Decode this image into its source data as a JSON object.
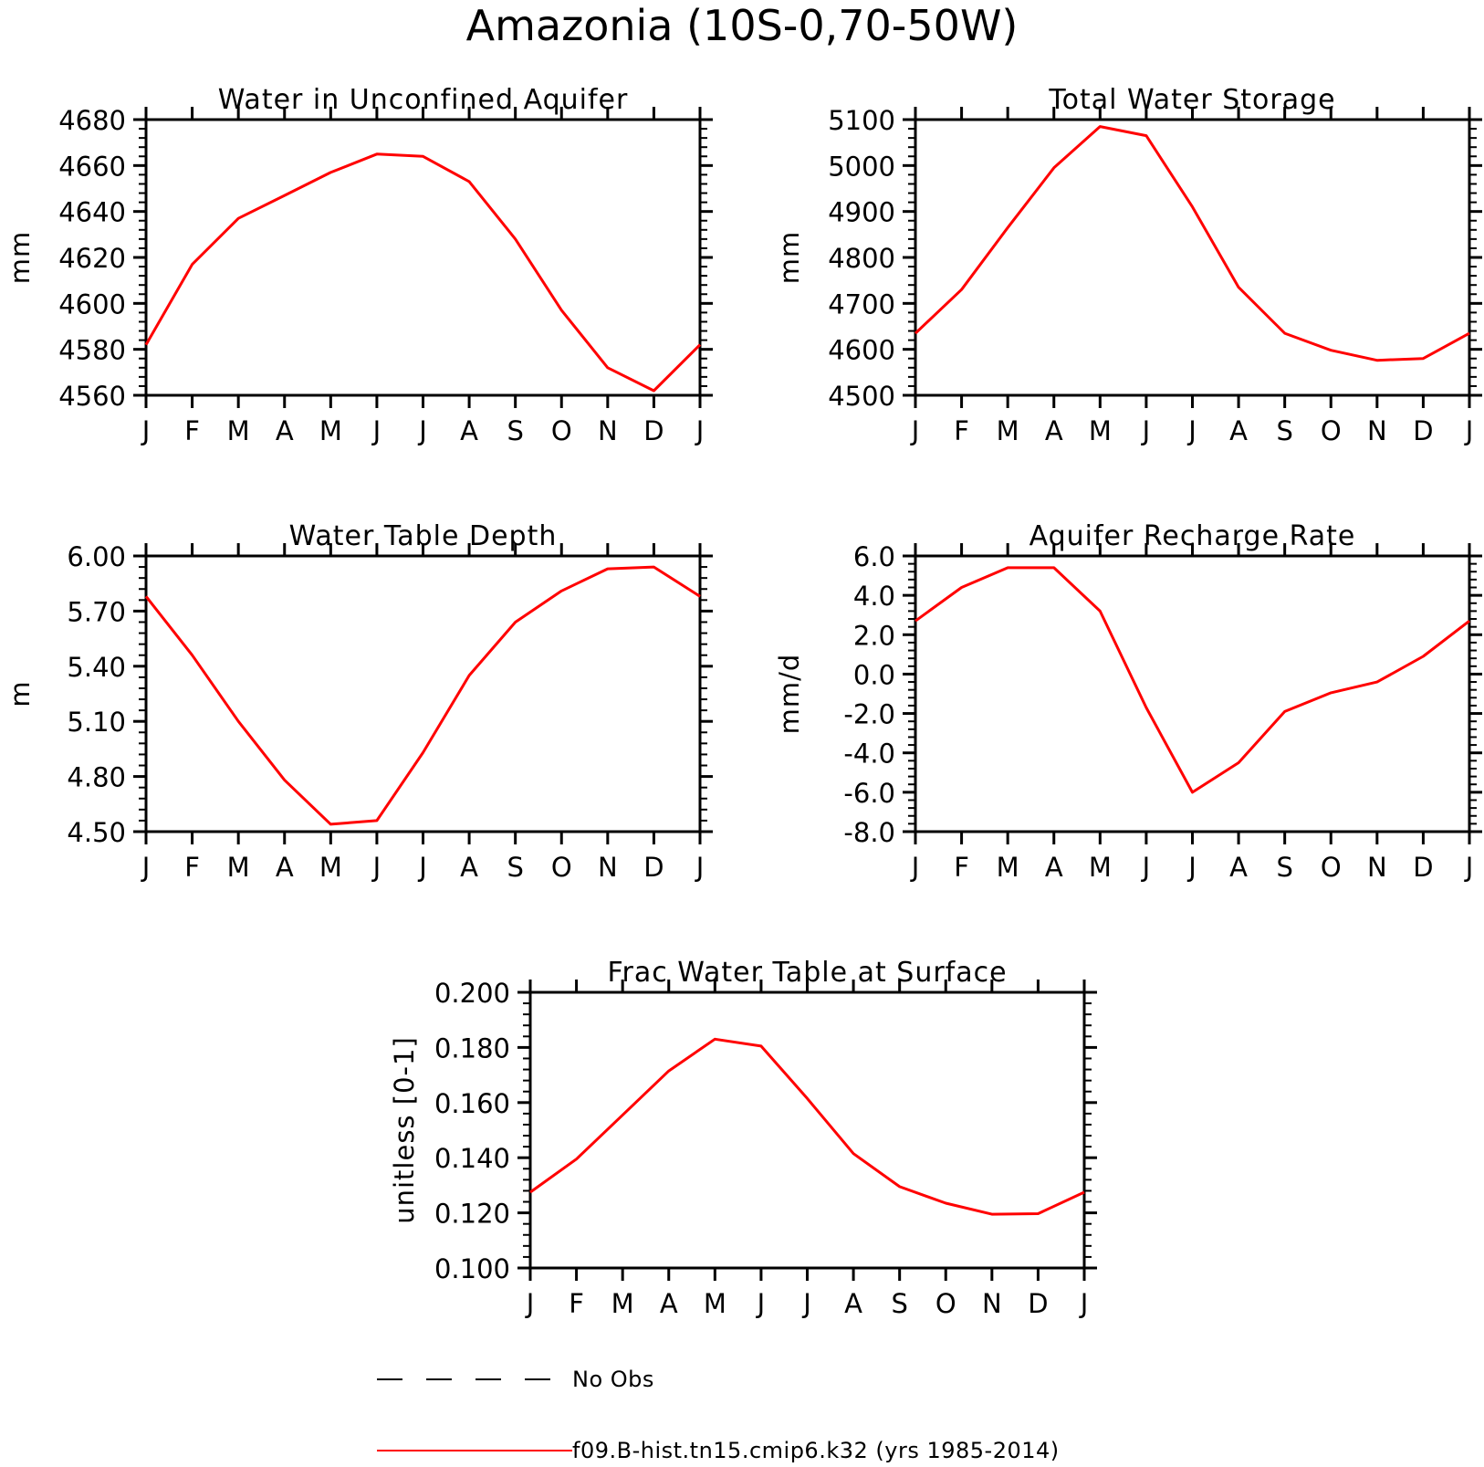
{
  "figure_title": "Amazonia (10S-0,70-50W)",
  "legend": [
    {
      "label": "No Obs",
      "style": "dashed",
      "color": "#000000"
    },
    {
      "label": "f09.B-hist.tn15.cmip6.k32 (yrs 1985-2014)",
      "style": "solid",
      "color": "#ff0000"
    }
  ],
  "chart_data": [
    {
      "type": "line",
      "title": "Water in Unconfined Aquifer",
      "xlabel": "",
      "ylabel": "mm",
      "categories": [
        "J",
        "F",
        "M",
        "A",
        "M",
        "J",
        "J",
        "A",
        "S",
        "O",
        "N",
        "D",
        "J"
      ],
      "ylim": [
        4560,
        4680
      ],
      "yticks": [
        4560,
        4580,
        4600,
        4620,
        4640,
        4660,
        4680
      ],
      "ytick_labels": [
        "4560",
        "4580",
        "4600",
        "4620",
        "4640",
        "4660",
        "4680"
      ],
      "series": [
        {
          "color": "#ff0000",
          "values": [
            4582,
            4617,
            4637,
            4647,
            4657,
            4665,
            4664,
            4653,
            4628,
            4597,
            4572,
            4562,
            4582
          ]
        }
      ]
    },
    {
      "type": "line",
      "title": "Total Water Storage",
      "xlabel": "",
      "ylabel": "mm",
      "categories": [
        "J",
        "F",
        "M",
        "A",
        "M",
        "J",
        "J",
        "A",
        "S",
        "O",
        "N",
        "D",
        "J"
      ],
      "ylim": [
        4500,
        5100
      ],
      "yticks": [
        4500,
        4600,
        4700,
        4800,
        4900,
        5000,
        5100
      ],
      "ytick_labels": [
        "4500",
        "4600",
        "4700",
        "4800",
        "4900",
        "5000",
        "5100"
      ],
      "series": [
        {
          "color": "#ff0000",
          "values": [
            4635,
            4730,
            4865,
            4995,
            5085,
            5065,
            4910,
            4735,
            4635,
            4598,
            4576,
            4580,
            4635
          ]
        }
      ]
    },
    {
      "type": "line",
      "title": "Water Table Depth",
      "xlabel": "",
      "ylabel": "m",
      "categories": [
        "J",
        "F",
        "M",
        "A",
        "M",
        "J",
        "J",
        "A",
        "S",
        "O",
        "N",
        "D",
        "J"
      ],
      "ylim": [
        4.5,
        6.0
      ],
      "yticks": [
        4.5,
        4.8,
        5.1,
        5.4,
        5.7,
        6.0
      ],
      "ytick_labels": [
        "4.50",
        "4.80",
        "5.10",
        "5.40",
        "5.70",
        "6.00"
      ],
      "series": [
        {
          "color": "#ff0000",
          "values": [
            5.78,
            5.46,
            5.1,
            4.78,
            4.54,
            4.56,
            4.93,
            5.35,
            5.64,
            5.81,
            5.93,
            5.94,
            5.78
          ]
        }
      ]
    },
    {
      "type": "line",
      "title": "Aquifer Recharge Rate",
      "xlabel": "",
      "ylabel": "mm/d",
      "categories": [
        "J",
        "F",
        "M",
        "A",
        "M",
        "J",
        "J",
        "A",
        "S",
        "O",
        "N",
        "D",
        "J"
      ],
      "ylim": [
        -8.0,
        6.0
      ],
      "yticks": [
        -8,
        -6,
        -4,
        -2,
        0,
        2,
        4,
        6
      ],
      "ytick_labels": [
        "-8.0",
        "-6.0",
        "-4.0",
        "-2.0",
        "0.0",
        "2.0",
        "4.0",
        "6.0"
      ],
      "series": [
        {
          "color": "#ff0000",
          "values": [
            2.7,
            4.4,
            5.4,
            5.4,
            3.2,
            -1.7,
            -6.0,
            -4.5,
            -1.9,
            -0.95,
            -0.4,
            0.9,
            2.7
          ]
        }
      ]
    },
    {
      "type": "line",
      "title": "Frac Water Table at Surface",
      "xlabel": "",
      "ylabel": "unitless [0-1]",
      "categories": [
        "J",
        "F",
        "M",
        "A",
        "M",
        "J",
        "J",
        "A",
        "S",
        "O",
        "N",
        "D",
        "J"
      ],
      "ylim": [
        0.1,
        0.2
      ],
      "yticks": [
        0.1,
        0.12,
        0.14,
        0.16,
        0.18,
        0.2
      ],
      "ytick_labels": [
        "0.100",
        "0.120",
        "0.140",
        "0.160",
        "0.180",
        "0.200"
      ],
      "series": [
        {
          "color": "#ff0000",
          "values": [
            0.1275,
            0.1395,
            0.1555,
            0.1715,
            0.183,
            0.1805,
            0.1615,
            0.1415,
            0.1295,
            0.1235,
            0.1195,
            0.1197,
            0.1275
          ]
        }
      ]
    }
  ]
}
